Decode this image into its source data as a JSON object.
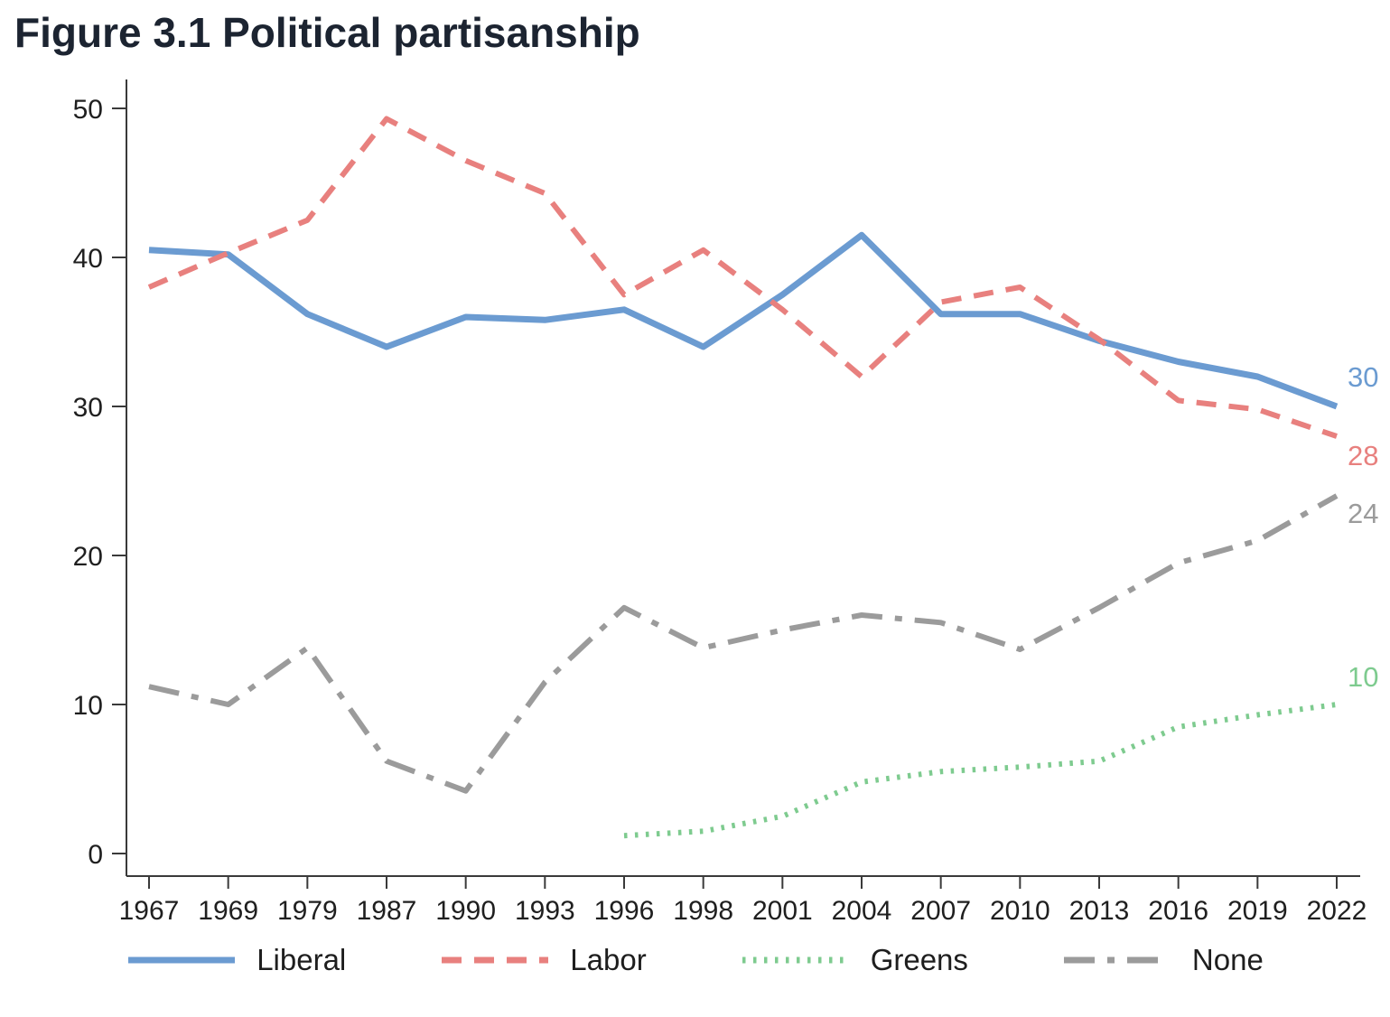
{
  "title": "Figure 3.1 Political partisanship",
  "chart_data": {
    "type": "line",
    "title": "Figure 3.1 Political partisanship",
    "categories": [
      "1967",
      "1969",
      "1979",
      "1987",
      "1990",
      "1993",
      "1996",
      "1998",
      "2001",
      "2004",
      "2007",
      "2010",
      "2013",
      "2016",
      "2019",
      "2022"
    ],
    "ylim": [
      0,
      50
    ],
    "yticks": [
      0,
      10,
      20,
      30,
      40,
      50
    ],
    "grid": false,
    "legend_position": "bottom",
    "series": [
      {
        "name": "Liberal",
        "color": "#6b9bd1",
        "line_style": "solid",
        "end_label": "30",
        "values": [
          40.5,
          40.2,
          36.2,
          34,
          36,
          35.8,
          36.5,
          34,
          37.5,
          41.5,
          36.2,
          36.2,
          34.4,
          33,
          32,
          30
        ]
      },
      {
        "name": "Labor",
        "color": "#e8807e",
        "line_style": "dashed",
        "end_label": "28",
        "values": [
          38,
          40.3,
          42.5,
          49.3,
          46.5,
          44.3,
          37.5,
          40.5,
          36.5,
          32,
          37,
          38,
          34.5,
          30.4,
          29.8,
          28
        ]
      },
      {
        "name": "Greens",
        "color": "#7ecb8f",
        "line_style": "dotted",
        "end_label": "10",
        "values": [
          null,
          null,
          null,
          null,
          null,
          null,
          1.2,
          1.5,
          2.5,
          4.8,
          5.5,
          5.8,
          6.2,
          8.5,
          9.3,
          10
        ]
      },
      {
        "name": "None",
        "color": "#9b9b9b",
        "line_style": "dashdot",
        "end_label": "24",
        "values": [
          11.2,
          10,
          13.8,
          6.2,
          4.2,
          11.5,
          16.5,
          13.8,
          15,
          16,
          15.5,
          13.7,
          16.5,
          19.5,
          21,
          24
        ]
      }
    ]
  }
}
